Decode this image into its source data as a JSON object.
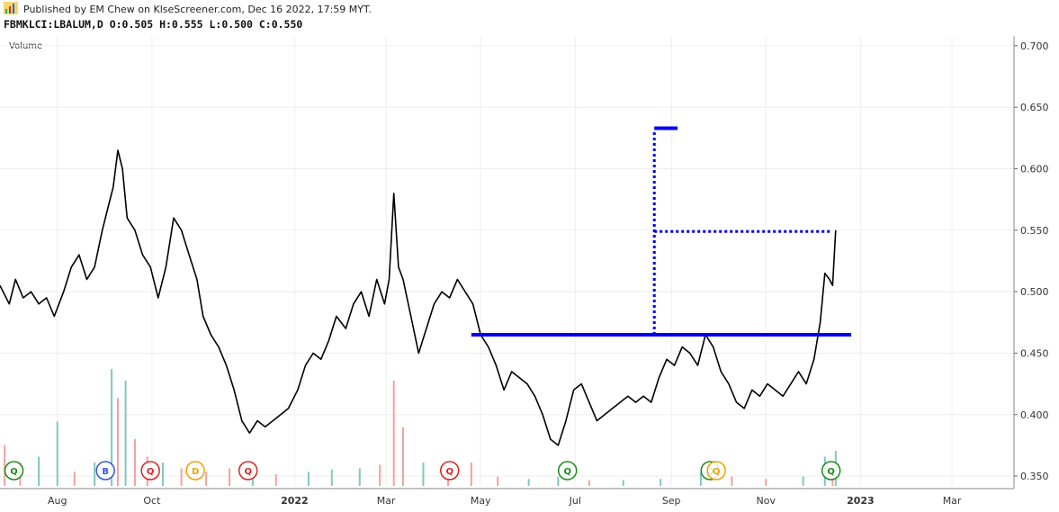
{
  "header": {
    "published": "Published by EM Chew on KlseScreener.com, Dec 16 2022, 17:59 MYT.",
    "ohlc": "FBMKLCI:LBALUM,D  O:0.505 H:0.555 L:0.500 C:0.550",
    "volume_label": "Volume"
  },
  "colors": {
    "price": "#000000",
    "level_line": "#0000ee",
    "grid": "#eeeeee",
    "volume_up": "#7fc8c0",
    "volume_down": "#f2a0a0",
    "marker_q_green": "#1b8a1b",
    "marker_b_blue": "#3355dd",
    "marker_q_red": "#dd2222",
    "marker_d_orange": "#f0a000"
  },
  "chart_data": {
    "type": "line",
    "x_ticks": [
      {
        "label": "Aug",
        "date": "2021-08-01",
        "bold": false
      },
      {
        "label": "Oct",
        "date": "2021-10-01",
        "bold": false
      },
      {
        "label": "2022",
        "date": "2022-01-01",
        "bold": true
      },
      {
        "label": "Mar",
        "date": "2022-03-01",
        "bold": false
      },
      {
        "label": "May",
        "date": "2022-05-01",
        "bold": false
      },
      {
        "label": "Jul",
        "date": "2022-07-01",
        "bold": false
      },
      {
        "label": "Sep",
        "date": "2022-09-01",
        "bold": false
      },
      {
        "label": "Nov",
        "date": "2022-11-01",
        "bold": false
      },
      {
        "label": "2023",
        "date": "2023-01-01",
        "bold": true
      },
      {
        "label": "Mar",
        "date": "2023-03-01",
        "bold": false
      }
    ],
    "y_ticks": [
      "0.700",
      "0.650",
      "0.600",
      "0.550",
      "0.500",
      "0.450",
      "0.400",
      "0.350"
    ],
    "ylim": [
      0.342,
      0.708
    ],
    "xlim": [
      "2021-06-25",
      "2023-04-10"
    ],
    "grid": true,
    "series": [
      {
        "points": [
          [
            "2021-06-25",
            0.505
          ],
          [
            "2021-07-01",
            0.49
          ],
          [
            "2021-07-05",
            0.51
          ],
          [
            "2021-07-10",
            0.495
          ],
          [
            "2021-07-15",
            0.5
          ],
          [
            "2021-07-20",
            0.49
          ],
          [
            "2021-07-25",
            0.495
          ],
          [
            "2021-07-30",
            0.48
          ],
          [
            "2021-08-05",
            0.5
          ],
          [
            "2021-08-10",
            0.52
          ],
          [
            "2021-08-15",
            0.53
          ],
          [
            "2021-08-20",
            0.51
          ],
          [
            "2021-08-25",
            0.52
          ],
          [
            "2021-08-30",
            0.55
          ],
          [
            "2021-09-03",
            0.57
          ],
          [
            "2021-09-06",
            0.585
          ],
          [
            "2021-09-09",
            0.615
          ],
          [
            "2021-09-12",
            0.6
          ],
          [
            "2021-09-15",
            0.56
          ],
          [
            "2021-09-20",
            0.55
          ],
          [
            "2021-09-25",
            0.53
          ],
          [
            "2021-09-30",
            0.52
          ],
          [
            "2021-10-05",
            0.495
          ],
          [
            "2021-10-10",
            0.52
          ],
          [
            "2021-10-15",
            0.56
          ],
          [
            "2021-10-20",
            0.55
          ],
          [
            "2021-10-25",
            0.53
          ],
          [
            "2021-10-30",
            0.51
          ],
          [
            "2021-11-03",
            0.48
          ],
          [
            "2021-11-08",
            0.465
          ],
          [
            "2021-11-13",
            0.455
          ],
          [
            "2021-11-18",
            0.44
          ],
          [
            "2021-11-23",
            0.42
          ],
          [
            "2021-11-28",
            0.395
          ],
          [
            "2021-12-03",
            0.385
          ],
          [
            "2021-12-08",
            0.395
          ],
          [
            "2021-12-13",
            0.39
          ],
          [
            "2021-12-18",
            0.395
          ],
          [
            "2021-12-23",
            0.4
          ],
          [
            "2021-12-28",
            0.405
          ],
          [
            "2022-01-03",
            0.42
          ],
          [
            "2022-01-08",
            0.44
          ],
          [
            "2022-01-13",
            0.45
          ],
          [
            "2022-01-18",
            0.445
          ],
          [
            "2022-01-23",
            0.46
          ],
          [
            "2022-01-28",
            0.48
          ],
          [
            "2022-02-03",
            0.47
          ],
          [
            "2022-02-08",
            0.49
          ],
          [
            "2022-02-13",
            0.5
          ],
          [
            "2022-02-18",
            0.48
          ],
          [
            "2022-02-23",
            0.51
          ],
          [
            "2022-02-28",
            0.49
          ],
          [
            "2022-03-03",
            0.51
          ],
          [
            "2022-03-06",
            0.58
          ],
          [
            "2022-03-09",
            0.52
          ],
          [
            "2022-03-12",
            0.51
          ],
          [
            "2022-03-17",
            0.48
          ],
          [
            "2022-03-22",
            0.45
          ],
          [
            "2022-03-27",
            0.47
          ],
          [
            "2022-04-01",
            0.49
          ],
          [
            "2022-04-06",
            0.5
          ],
          [
            "2022-04-11",
            0.495
          ],
          [
            "2022-04-16",
            0.51
          ],
          [
            "2022-04-21",
            0.5
          ],
          [
            "2022-04-26",
            0.49
          ],
          [
            "2022-05-01",
            0.465
          ],
          [
            "2022-05-06",
            0.455
          ],
          [
            "2022-05-11",
            0.44
          ],
          [
            "2022-05-16",
            0.42
          ],
          [
            "2022-05-21",
            0.435
          ],
          [
            "2022-05-26",
            0.43
          ],
          [
            "2022-05-31",
            0.425
          ],
          [
            "2022-06-05",
            0.415
          ],
          [
            "2022-06-10",
            0.4
          ],
          [
            "2022-06-15",
            0.38
          ],
          [
            "2022-06-20",
            0.375
          ],
          [
            "2022-06-25",
            0.395
          ],
          [
            "2022-06-30",
            0.42
          ],
          [
            "2022-07-05",
            0.425
          ],
          [
            "2022-07-10",
            0.41
          ],
          [
            "2022-07-15",
            0.395
          ],
          [
            "2022-07-20",
            0.4
          ],
          [
            "2022-07-25",
            0.405
          ],
          [
            "2022-07-30",
            0.41
          ],
          [
            "2022-08-04",
            0.415
          ],
          [
            "2022-08-09",
            0.41
          ],
          [
            "2022-08-14",
            0.415
          ],
          [
            "2022-08-19",
            0.41
          ],
          [
            "2022-08-24",
            0.43
          ],
          [
            "2022-08-29",
            0.445
          ],
          [
            "2022-09-03",
            0.44
          ],
          [
            "2022-09-08",
            0.455
          ],
          [
            "2022-09-13",
            0.45
          ],
          [
            "2022-09-18",
            0.44
          ],
          [
            "2022-09-23",
            0.465
          ],
          [
            "2022-09-28",
            0.455
          ],
          [
            "2022-10-03",
            0.435
          ],
          [
            "2022-10-08",
            0.425
          ],
          [
            "2022-10-13",
            0.41
          ],
          [
            "2022-10-18",
            0.405
          ],
          [
            "2022-10-23",
            0.42
          ],
          [
            "2022-10-28",
            0.415
          ],
          [
            "2022-11-02",
            0.425
          ],
          [
            "2022-11-07",
            0.42
          ],
          [
            "2022-11-12",
            0.415
          ],
          [
            "2022-11-17",
            0.425
          ],
          [
            "2022-11-22",
            0.435
          ],
          [
            "2022-11-27",
            0.425
          ],
          [
            "2022-12-02",
            0.445
          ],
          [
            "2022-12-06",
            0.475
          ],
          [
            "2022-12-09",
            0.515
          ],
          [
            "2022-12-12",
            0.51
          ],
          [
            "2022-12-14",
            0.505
          ],
          [
            "2022-12-16",
            0.55
          ]
        ]
      }
    ],
    "volume": {
      "ylim": [
        0,
        1
      ],
      "bars": [
        [
          "2021-06-28",
          0.35,
          "down"
        ],
        [
          "2021-07-08",
          0.2,
          "down"
        ],
        [
          "2021-07-20",
          0.25,
          "up"
        ],
        [
          "2021-08-01",
          0.55,
          "up"
        ],
        [
          "2021-08-12",
          0.12,
          "down"
        ],
        [
          "2021-08-25",
          0.2,
          "up"
        ],
        [
          "2021-09-05",
          1.0,
          "up"
        ],
        [
          "2021-09-09",
          0.75,
          "down"
        ],
        [
          "2021-09-14",
          0.9,
          "up"
        ],
        [
          "2021-09-20",
          0.4,
          "down"
        ],
        [
          "2021-09-28",
          0.25,
          "down"
        ],
        [
          "2021-10-08",
          0.2,
          "up"
        ],
        [
          "2021-10-20",
          0.15,
          "down"
        ],
        [
          "2021-11-05",
          0.12,
          "down"
        ],
        [
          "2021-11-20",
          0.15,
          "down"
        ],
        [
          "2021-12-05",
          0.08,
          "up"
        ],
        [
          "2021-12-20",
          0.1,
          "down"
        ],
        [
          "2022-01-10",
          0.12,
          "up"
        ],
        [
          "2022-01-25",
          0.14,
          "up"
        ],
        [
          "2022-02-12",
          0.15,
          "up"
        ],
        [
          "2022-02-25",
          0.18,
          "down"
        ],
        [
          "2022-03-06",
          0.9,
          "down"
        ],
        [
          "2022-03-12",
          0.5,
          "down"
        ],
        [
          "2022-03-25",
          0.2,
          "up"
        ],
        [
          "2022-04-10",
          0.15,
          "down"
        ],
        [
          "2022-04-25",
          0.2,
          "down"
        ],
        [
          "2022-05-12",
          0.08,
          "down"
        ],
        [
          "2022-06-01",
          0.06,
          "up"
        ],
        [
          "2022-06-20",
          0.08,
          "up"
        ],
        [
          "2022-07-10",
          0.05,
          "down"
        ],
        [
          "2022-08-01",
          0.05,
          "up"
        ],
        [
          "2022-08-25",
          0.06,
          "up"
        ],
        [
          "2022-09-20",
          0.12,
          "up"
        ],
        [
          "2022-10-10",
          0.08,
          "down"
        ],
        [
          "2022-11-01",
          0.06,
          "down"
        ],
        [
          "2022-11-25",
          0.08,
          "up"
        ],
        [
          "2022-12-09",
          0.25,
          "up"
        ],
        [
          "2022-12-14",
          0.2,
          "down"
        ],
        [
          "2022-12-16",
          0.3,
          "up"
        ]
      ]
    },
    "levels": [
      {
        "from": "2022-04-25",
        "to": "2022-12-26",
        "value": 0.465,
        "style": "solid"
      },
      {
        "from": "2022-08-21",
        "to": "2022-12-13",
        "value": 0.549,
        "style": "dotted"
      },
      {
        "from": "2022-08-21",
        "to": "2022-09-05",
        "value": 0.633,
        "style": "solid"
      },
      {
        "from": "2022-08-21",
        "to": "2022-08-21",
        "value_from": 0.465,
        "value": 0.632,
        "style": "dotted"
      }
    ],
    "markers": [
      {
        "label": "Q",
        "date": "2021-07-04",
        "color": "marker_q_green"
      },
      {
        "label": "B",
        "date": "2021-09-01",
        "color": "marker_b_blue"
      },
      {
        "label": "Q",
        "date": "2021-09-30",
        "color": "marker_q_red"
      },
      {
        "label": "D",
        "date": "2021-10-29",
        "color": "marker_d_orange"
      },
      {
        "label": "Q",
        "date": "2021-12-02",
        "color": "marker_q_red"
      },
      {
        "label": "Q",
        "date": "2022-04-11",
        "color": "marker_q_red"
      },
      {
        "label": "Q",
        "date": "2022-06-26",
        "color": "marker_q_green"
      },
      {
        "label": "Q",
        "date": "2022-09-26",
        "color": "marker_q_green"
      },
      {
        "label": "Q",
        "date": "2022-09-30",
        "color": "marker_d_orange"
      },
      {
        "label": "Q",
        "date": "2022-12-13",
        "color": "marker_q_green"
      }
    ]
  }
}
